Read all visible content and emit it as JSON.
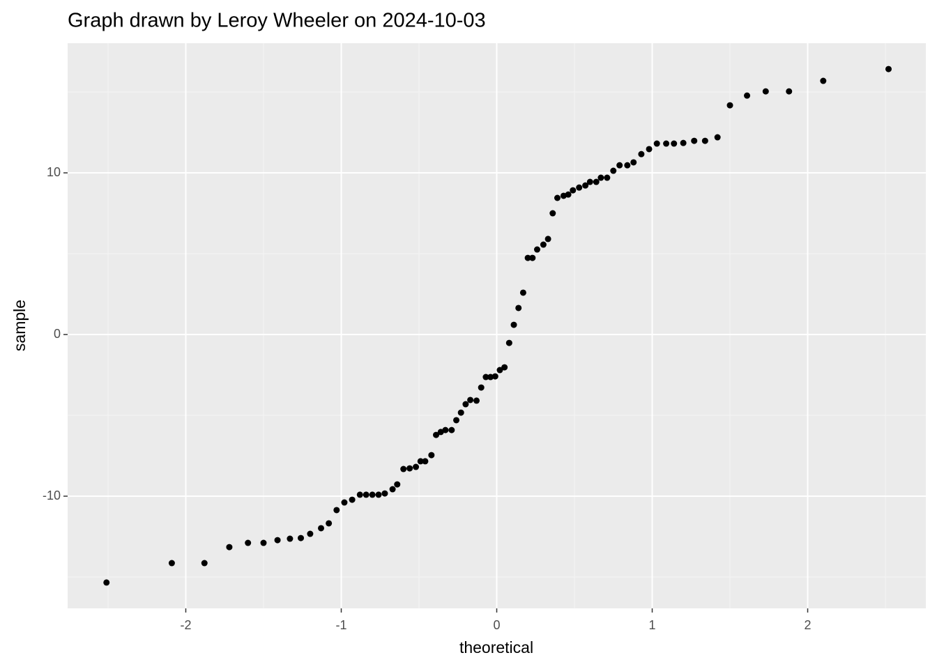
{
  "chart_data": {
    "type": "scatter",
    "title": "Graph drawn by Leroy Wheeler on 2024-10-03",
    "x_label": "theoretical",
    "y_label": "sample",
    "x": [
      -2.51,
      -2.09,
      -1.88,
      -1.72,
      -1.6,
      -1.5,
      -1.41,
      -1.33,
      -1.26,
      -1.2,
      -1.13,
      -1.08,
      -1.03,
      -0.98,
      -0.93,
      -0.88,
      -0.84,
      -0.8,
      -0.76,
      -0.72,
      -0.67,
      -0.64,
      -0.6,
      -0.56,
      -0.52,
      -0.49,
      -0.46,
      -0.42,
      -0.39,
      -0.36,
      -0.33,
      -0.29,
      -0.26,
      -0.23,
      -0.2,
      -0.17,
      -0.13,
      -0.1,
      -0.07,
      -0.04,
      -0.01,
      0.02,
      0.05,
      0.08,
      0.11,
      0.14,
      0.17,
      0.2,
      0.23,
      0.26,
      0.3,
      0.33,
      0.36,
      0.39,
      0.43,
      0.46,
      0.49,
      0.53,
      0.57,
      0.6,
      0.64,
      0.67,
      0.71,
      0.75,
      0.79,
      0.84,
      0.88,
      0.93,
      0.98,
      1.03,
      1.09,
      1.14,
      1.2,
      1.27,
      1.34,
      1.42,
      1.5,
      1.61,
      1.73,
      1.88,
      2.1,
      2.52
    ],
    "values": [
      -15.34,
      -14.14,
      -14.14,
      -13.15,
      -12.89,
      -12.89,
      -12.72,
      -12.63,
      -12.59,
      -12.33,
      -11.98,
      -11.68,
      -10.86,
      -10.39,
      -10.22,
      -9.91,
      -9.91,
      -9.91,
      -9.91,
      -9.83,
      -9.57,
      -9.27,
      -8.32,
      -8.28,
      -8.19,
      -7.84,
      -7.84,
      -7.46,
      -6.21,
      -6.03,
      -5.91,
      -5.91,
      -5.3,
      -4.83,
      -4.31,
      -4.05,
      -4.09,
      -3.28,
      -2.63,
      -2.63,
      -2.59,
      -2.2,
      -2.03,
      -0.52,
      0.6,
      1.64,
      2.59,
      4.74,
      4.74,
      5.26,
      5.56,
      5.91,
      7.5,
      8.45,
      8.58,
      8.66,
      8.92,
      9.09,
      9.22,
      9.44,
      9.44,
      9.7,
      9.7,
      10.13,
      10.47,
      10.47,
      10.65,
      11.16,
      11.47,
      11.81,
      11.81,
      11.81,
      11.85,
      11.98,
      11.98,
      12.2,
      14.18,
      14.78,
      15.04,
      15.04,
      15.69,
      16.42
    ],
    "color": "#000000",
    "xlim": [
      -2.76,
      2.76
    ],
    "xticks": [
      -2,
      -1,
      0,
      1,
      2
    ],
    "ylim": [
      -16.94,
      18.02
    ],
    "yticks": [
      -10,
      0,
      10
    ],
    "grid": true
  }
}
